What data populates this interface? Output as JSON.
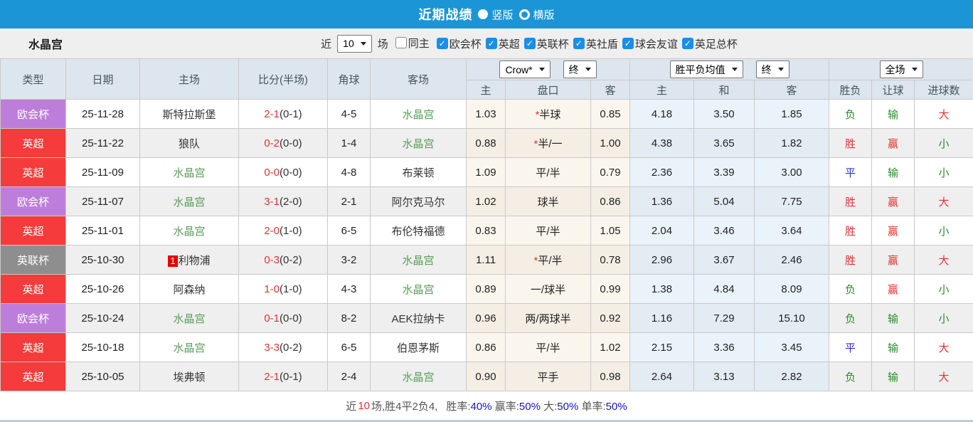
{
  "titlebar": {
    "title": "近期战绩",
    "vertical_label": "竖版",
    "horizontal_label": "横版",
    "selected_layout": "竖版"
  },
  "filterbar": {
    "team": "水晶宫",
    "near_label": "近",
    "match_count": "10",
    "games_label": "场",
    "same_home": {
      "label": "同主",
      "checked": false
    },
    "competitions": [
      {
        "label": "欧会杯",
        "checked": true
      },
      {
        "label": "英超",
        "checked": true
      },
      {
        "label": "英联杯",
        "checked": true
      },
      {
        "label": "英社盾",
        "checked": true
      },
      {
        "label": "球会友谊",
        "checked": true
      },
      {
        "label": "英足总杯",
        "checked": true
      }
    ]
  },
  "table": {
    "columns": {
      "type": "类型",
      "date": "日期",
      "home": "主场",
      "score": "比分(半场)",
      "corner": "角球",
      "away": "客场",
      "odds_home": "主",
      "handicap": "盘口",
      "odds_away": "客",
      "avg_home": "主",
      "avg_draw": "和",
      "avg_away": "客",
      "result": "胜负",
      "handicap_result": "让球",
      "goals": "进球数"
    },
    "selects": {
      "company": "Crow*",
      "company_time": "终",
      "avg": "胜平负均值",
      "avg_time": "终",
      "scope": "全场"
    },
    "rows": [
      {
        "type": "欧会杯",
        "date": "25-11-28",
        "home": "斯特拉斯堡",
        "home_rank": "",
        "score_ft": "2-1",
        "score_ht": "(0-1)",
        "corner": "4-5",
        "away": "水晶宫",
        "odds_home": "1.03",
        "handicap_star": true,
        "handicap": "半球",
        "odds_away": "0.85",
        "avg_home": "4.18",
        "avg_draw": "3.50",
        "avg_away": "1.85",
        "result": "负",
        "handicap_result": "输",
        "goals_result": "大"
      },
      {
        "type": "英超",
        "date": "25-11-22",
        "home": "狼队",
        "home_rank": "",
        "score_ft": "0-2",
        "score_ht": "(0-0)",
        "corner": "1-4",
        "away": "水晶宫",
        "odds_home": "0.88",
        "handicap_star": true,
        "handicap": "半/一",
        "odds_away": "1.00",
        "avg_home": "4.38",
        "avg_draw": "3.65",
        "avg_away": "1.82",
        "result": "胜",
        "handicap_result": "赢",
        "goals_result": "小"
      },
      {
        "type": "英超",
        "date": "25-11-09",
        "home": "水晶宫",
        "home_rank": "",
        "score_ft": "0-0",
        "score_ht": "(0-0)",
        "corner": "4-8",
        "away": "布莱顿",
        "odds_home": "1.09",
        "handicap_star": false,
        "handicap": "平/半",
        "odds_away": "0.79",
        "avg_home": "2.36",
        "avg_draw": "3.39",
        "avg_away": "3.00",
        "result": "平",
        "handicap_result": "输",
        "goals_result": "小"
      },
      {
        "type": "欧会杯",
        "date": "25-11-07",
        "home": "水晶宫",
        "home_rank": "",
        "score_ft": "3-1",
        "score_ht": "(2-0)",
        "corner": "2-1",
        "away": "阿尔克马尔",
        "odds_home": "1.02",
        "handicap_star": false,
        "handicap": "球半",
        "odds_away": "0.86",
        "avg_home": "1.36",
        "avg_draw": "5.04",
        "avg_away": "7.75",
        "result": "胜",
        "handicap_result": "赢",
        "goals_result": "大"
      },
      {
        "type": "英超",
        "date": "25-11-01",
        "home": "水晶宫",
        "home_rank": "",
        "score_ft": "2-0",
        "score_ht": "(1-0)",
        "corner": "6-5",
        "away": "布伦特福德",
        "odds_home": "0.83",
        "handicap_star": false,
        "handicap": "平/半",
        "odds_away": "1.05",
        "avg_home": "2.04",
        "avg_draw": "3.46",
        "avg_away": "3.64",
        "result": "胜",
        "handicap_result": "赢",
        "goals_result": "小"
      },
      {
        "type": "英联杯",
        "date": "25-10-30",
        "home": "利物浦",
        "home_rank": "1",
        "score_ft": "0-3",
        "score_ht": "(0-2)",
        "corner": "3-2",
        "away": "水晶宫",
        "odds_home": "1.11",
        "handicap_star": true,
        "handicap": "平/半",
        "odds_away": "0.78",
        "avg_home": "2.96",
        "avg_draw": "3.67",
        "avg_away": "2.46",
        "result": "胜",
        "handicap_result": "赢",
        "goals_result": "大"
      },
      {
        "type": "英超",
        "date": "25-10-26",
        "home": "阿森纳",
        "home_rank": "",
        "score_ft": "1-0",
        "score_ht": "(1-0)",
        "corner": "4-3",
        "away": "水晶宫",
        "odds_home": "0.89",
        "handicap_star": false,
        "handicap": "一/球半",
        "odds_away": "0.99",
        "avg_home": "1.38",
        "avg_draw": "4.84",
        "avg_away": "8.09",
        "result": "负",
        "handicap_result": "赢",
        "goals_result": "小"
      },
      {
        "type": "欧会杯",
        "date": "25-10-24",
        "home": "水晶宫",
        "home_rank": "",
        "score_ft": "0-1",
        "score_ht": "(0-0)",
        "corner": "8-2",
        "away": "AEK拉纳卡",
        "odds_home": "0.96",
        "handicap_star": false,
        "handicap": "两/两球半",
        "odds_away": "0.92",
        "avg_home": "1.16",
        "avg_draw": "7.29",
        "avg_away": "15.10",
        "result": "负",
        "handicap_result": "输",
        "goals_result": "小"
      },
      {
        "type": "英超",
        "date": "25-10-18",
        "home": "水晶宫",
        "home_rank": "",
        "score_ft": "3-3",
        "score_ht": "(0-2)",
        "corner": "6-5",
        "away": "伯恩茅斯",
        "odds_home": "0.86",
        "handicap_star": false,
        "handicap": "平/半",
        "odds_away": "1.02",
        "avg_home": "2.15",
        "avg_draw": "3.36",
        "avg_away": "3.45",
        "result": "平",
        "handicap_result": "输",
        "goals_result": "大"
      },
      {
        "type": "英超",
        "date": "25-10-05",
        "home": "埃弗顿",
        "home_rank": "",
        "score_ft": "2-1",
        "score_ht": "(0-1)",
        "corner": "2-4",
        "away": "水晶宫",
        "odds_home": "0.90",
        "handicap_star": false,
        "handicap": "平手",
        "odds_away": "0.98",
        "avg_home": "2.64",
        "avg_draw": "3.13",
        "avg_away": "2.82",
        "result": "负",
        "handicap_result": "输",
        "goals_result": "大"
      }
    ]
  },
  "footer": {
    "prefix": "近",
    "count": "10",
    "summary": "场,胜4平2负4,",
    "stats": [
      {
        "label": "胜率:",
        "value": "40%"
      },
      {
        "label": "赢率:",
        "value": "50%"
      },
      {
        "label": "大:",
        "value": "50%"
      },
      {
        "label": "单率:",
        "value": "50%"
      }
    ]
  },
  "colors": {
    "accent_blue": "#1b95d5",
    "type_badges": {
      "欧会杯": "#bd7edb",
      "英超": "#f53b3b",
      "英联杯": "#8e8e8e"
    },
    "result_text": {
      "胜": "#e23333",
      "平": "#2d2de0",
      "负": "#2e8b2e",
      "赢": "#e23333",
      "输": "#2e8b2e",
      "大": "#e23333",
      "小": "#2e8b2e"
    },
    "focus_team": "#5a9e5a",
    "normal_team": "#333333",
    "score_red": "#e23333",
    "rank_badge_bg": "#e60000",
    "handicap_star": "#e23333",
    "stat_value_blue": "#1414cc",
    "count_red": "#e23333"
  }
}
